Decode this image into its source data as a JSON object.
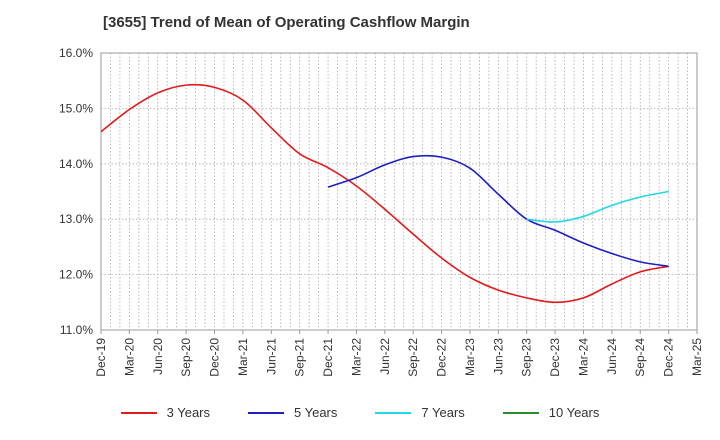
{
  "chart_data": {
    "type": "line",
    "title": "[3655]  Trend of Mean of Operating Cashflow Margin",
    "xlabel": "",
    "ylabel": "",
    "ylim": [
      11.0,
      16.0
    ],
    "yticks": [
      "11.0%",
      "12.0%",
      "13.0%",
      "14.0%",
      "15.0%",
      "16.0%"
    ],
    "ytick_values": [
      11,
      12,
      13,
      14,
      15,
      16
    ],
    "x_labels": [
      "Dec-19",
      "Mar-20",
      "Jun-20",
      "Sep-20",
      "Dec-20",
      "Mar-21",
      "Jun-21",
      "Sep-21",
      "Dec-21",
      "Mar-22",
      "Jun-22",
      "Sep-22",
      "Dec-22",
      "Mar-23",
      "Jun-23",
      "Sep-23",
      "Dec-23",
      "Mar-24",
      "Jun-24",
      "Sep-24",
      "Dec-24",
      "Mar-25"
    ],
    "grid": true,
    "legend_position": "bottom",
    "series": [
      {
        "name": "3 Years",
        "color": "#e31a1c",
        "x": [
          "Dec-19",
          "Mar-20",
          "Jun-20",
          "Sep-20",
          "Dec-20",
          "Mar-21",
          "Jun-21",
          "Sep-21",
          "Dec-21",
          "Mar-22",
          "Jun-22",
          "Sep-22",
          "Dec-22",
          "Mar-23",
          "Jun-23",
          "Sep-23",
          "Dec-23",
          "Mar-24",
          "Jun-24",
          "Sep-24",
          "Dec-24"
        ],
        "values": [
          14.58,
          14.98,
          15.28,
          15.42,
          15.38,
          15.15,
          14.65,
          14.18,
          13.93,
          13.6,
          13.18,
          12.73,
          12.3,
          11.95,
          11.72,
          11.58,
          11.5,
          11.58,
          11.83,
          12.05,
          12.15
        ]
      },
      {
        "name": "5 Years",
        "color": "#1f1fbf",
        "x": [
          "Dec-21",
          "Mar-22",
          "Jun-22",
          "Sep-22",
          "Dec-22",
          "Mar-23",
          "Jun-23",
          "Sep-23",
          "Dec-23",
          "Mar-24",
          "Jun-24",
          "Sep-24",
          "Dec-24"
        ],
        "values": [
          13.58,
          13.75,
          13.98,
          14.13,
          14.12,
          13.92,
          13.45,
          13.0,
          12.8,
          12.57,
          12.38,
          12.23,
          12.15
        ]
      },
      {
        "name": "7 Years",
        "color": "#22d8e8",
        "x": [
          "Sep-23",
          "Dec-23",
          "Mar-24",
          "Jun-24",
          "Sep-24",
          "Dec-24"
        ],
        "values": [
          13.0,
          12.95,
          13.05,
          13.25,
          13.4,
          13.5
        ]
      },
      {
        "name": "10 Years",
        "color": "#2a8c2a",
        "x": [],
        "values": []
      }
    ]
  }
}
